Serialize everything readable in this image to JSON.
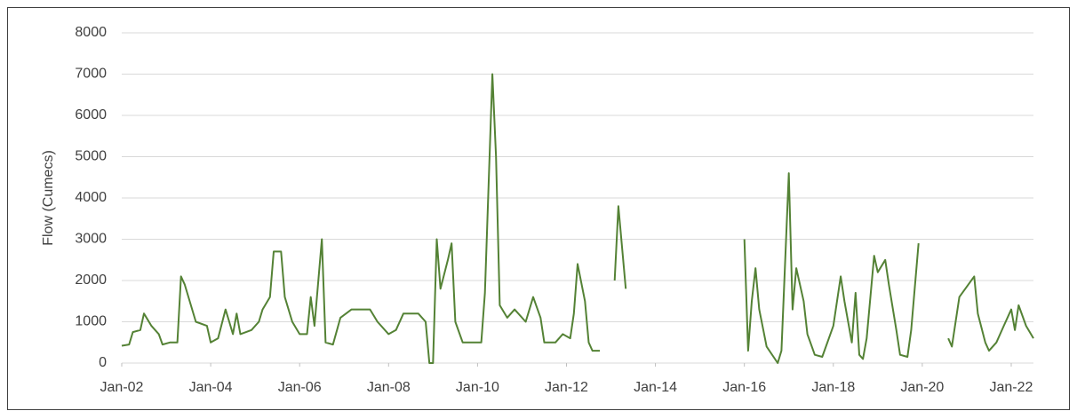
{
  "chart_data": {
    "type": "line",
    "y_label": "Flow (Cumecs)",
    "color": "#548235",
    "grid": true,
    "ylim": [
      0,
      8000
    ],
    "yticks": [
      0,
      1000,
      2000,
      3000,
      4000,
      5000,
      6000,
      7000,
      8000
    ],
    "xlim": [
      "2002-01",
      "2022-07"
    ],
    "xticks": [
      {
        "value": "2002-01",
        "label": "Jan-02"
      },
      {
        "value": "2004-01",
        "label": "Jan-04"
      },
      {
        "value": "2006-01",
        "label": "Jan-06"
      },
      {
        "value": "2008-01",
        "label": "Jan-08"
      },
      {
        "value": "2010-01",
        "label": "Jan-10"
      },
      {
        "value": "2012-01",
        "label": "Jan-12"
      },
      {
        "value": "2014-01",
        "label": "Jan-14"
      },
      {
        "value": "2016-01",
        "label": "Jan-16"
      },
      {
        "value": "2018-01",
        "label": "Jan-18"
      },
      {
        "value": "2020-01",
        "label": "Jan-20"
      },
      {
        "value": "2022-01",
        "label": "Jan-22"
      }
    ],
    "x": [
      "2002-01",
      "2002-03",
      "2002-04",
      "2002-06",
      "2002-07",
      "2002-09",
      "2002-11",
      "2002-12",
      "2003-02",
      "2003-04",
      "2003-05",
      "2003-06",
      "2003-09",
      "2003-12",
      "2004-01",
      "2004-03",
      "2004-05",
      "2004-06",
      "2004-07",
      "2004-08",
      "2004-09",
      "2004-12",
      "2005-02",
      "2005-03",
      "2005-05",
      "2005-06",
      "2005-08",
      "2005-09",
      "2005-11",
      "2006-01",
      "2006-03",
      "2006-04",
      "2006-05",
      "2006-07",
      "2006-08",
      "2006-10",
      "2006-12",
      "2007-03",
      "2007-08",
      "2007-10",
      "2008-01",
      "2008-03",
      "2008-05",
      "2008-09",
      "2008-11",
      "2008-12",
      "2009-01",
      "2009-02",
      "2009-03",
      "2009-05",
      "2009-06",
      "2009-07",
      "2009-09",
      "2010-01",
      "2010-02",
      "2010-03",
      "2010-05",
      "2010-06",
      "2010-07",
      "2010-09",
      "2010-11",
      "2011-02",
      "2011-04",
      "2011-06",
      "2011-07",
      "2011-10",
      "2011-12",
      "2012-02",
      "2012-03",
      "2012-04",
      "2012-06",
      "2012-07",
      "2012-08",
      "2012-10",
      "2012-12",
      "2013-02",
      "2013-03",
      "2013-05",
      "2014-01",
      "2016-01",
      "2016-02",
      "2016-03",
      "2016-04",
      "2016-05",
      "2016-07",
      "2016-10",
      "2016-11",
      "2017-01",
      "2017-02",
      "2017-03",
      "2017-05",
      "2017-06",
      "2017-08",
      "2017-10",
      "2018-01",
      "2018-03",
      "2018-04",
      "2018-06",
      "2018-07",
      "2018-08",
      "2018-09",
      "2018-10",
      "2018-12",
      "2019-01",
      "2019-03",
      "2019-04",
      "2019-06",
      "2019-07",
      "2019-09",
      "2019-10",
      "2019-12",
      "2020-03",
      "2020-08",
      "2020-09",
      "2020-10",
      "2020-11",
      "2021-03",
      "2021-04",
      "2021-06",
      "2021-07",
      "2021-09",
      "2021-11",
      "2022-01",
      "2022-02",
      "2022-03",
      "2022-05",
      "2022-07"
    ],
    "values": [
      420,
      450,
      750,
      800,
      1200,
      900,
      700,
      450,
      500,
      500,
      2100,
      1900,
      1000,
      900,
      500,
      600,
      1300,
      1000,
      700,
      1200,
      700,
      800,
      1000,
      1300,
      1600,
      2700,
      2700,
      1600,
      1000,
      700,
      700,
      1600,
      900,
      3000,
      500,
      450,
      1100,
      1300,
      1300,
      1000,
      700,
      800,
      1200,
      1200,
      1000,
      0,
      0,
      3000,
      1800,
      2500,
      2900,
      1000,
      500,
      500,
      500,
      1700,
      7000,
      5000,
      1400,
      1100,
      1300,
      1000,
      1600,
      1100,
      500,
      500,
      700,
      600,
      1200,
      2400,
      1500,
      500,
      300,
      300,
      null,
      2000,
      3800,
      1800,
      null,
      3000,
      300,
      1500,
      2300,
      1300,
      400,
      0,
      300,
      4600,
      1300,
      2300,
      1500,
      700,
      200,
      150,
      900,
      2100,
      1500,
      500,
      1700,
      200,
      100,
      600,
      2600,
      2200,
      2500,
      1900,
      800,
      200,
      150,
      800,
      2900,
      null,
      600,
      400,
      1000,
      1600,
      2100,
      1200,
      500,
      300,
      500,
      900,
      1300,
      800,
      1400,
      900,
      600
    ]
  }
}
